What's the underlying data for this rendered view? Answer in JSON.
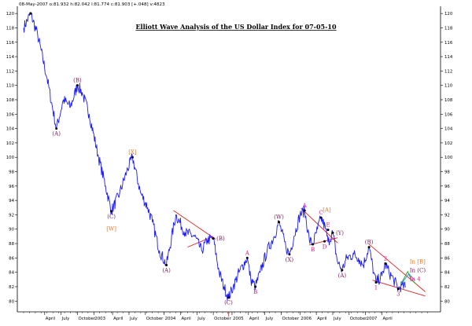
{
  "header": {
    "text": "08-May-2007 o:81.932 h:82.042 l:81.774 c:81.903 [+.048] v:4823"
  },
  "chart_data": {
    "type": "line",
    "title": "Elliott Wave Analysis of the US Dollar Index for 07-05-10",
    "ylim": [
      78.5,
      121
    ],
    "y_ticks": [
      80,
      82,
      84,
      86,
      88,
      90,
      92,
      94,
      96,
      98,
      100,
      102,
      104,
      106,
      108,
      110,
      112,
      114,
      116,
      118,
      120
    ],
    "x_tick_labels": [
      "April",
      "July",
      "October",
      "2003",
      "April",
      "July",
      "October",
      "2004",
      "April",
      "July",
      "October",
      "2005",
      "April",
      "July",
      "October",
      "2006",
      "April",
      "July",
      "October",
      "2007",
      "April"
    ],
    "x_tick_t": [
      0.9,
      1.6,
      2.3,
      3.0,
      3.8,
      4.5,
      5.2,
      6.0,
      6.7,
      7.4,
      8.1,
      8.9,
      9.6,
      10.3,
      11.0,
      11.8,
      12.5,
      13.2,
      13.9,
      14.6,
      15.3
    ],
    "anchors": [
      [
        0,
        118
      ],
      [
        0.3,
        120
      ],
      [
        0.6,
        117
      ],
      [
        1.0,
        111
      ],
      [
        1.4,
        104
      ],
      [
        1.7,
        108
      ],
      [
        2.0,
        107
      ],
      [
        2.3,
        110
      ],
      [
        2.5,
        109
      ],
      [
        2.8,
        106
      ],
      [
        3.2,
        100
      ],
      [
        3.5,
        96
      ],
      [
        3.75,
        92.5
      ],
      [
        4.1,
        95
      ],
      [
        4.4,
        98
      ],
      [
        4.65,
        100
      ],
      [
        5.0,
        95
      ],
      [
        5.3,
        93
      ],
      [
        5.5,
        91
      ],
      [
        5.8,
        87
      ],
      [
        6.1,
        85
      ],
      [
        6.5,
        92
      ],
      [
        6.9,
        89.5
      ],
      [
        7.3,
        89
      ],
      [
        7.6,
        87
      ],
      [
        7.85,
        88.5
      ],
      [
        8.1,
        88.7
      ],
      [
        8.35,
        84
      ],
      [
        8.55,
        82
      ],
      [
        8.75,
        80.5
      ],
      [
        8.95,
        82
      ],
      [
        9.2,
        84
      ],
      [
        9.55,
        86
      ],
      [
        9.7,
        83
      ],
      [
        9.9,
        82
      ],
      [
        10.1,
        84
      ],
      [
        10.4,
        87
      ],
      [
        10.7,
        89
      ],
      [
        10.9,
        91
      ],
      [
        11.2,
        87.5
      ],
      [
        11.35,
        86.5
      ],
      [
        11.55,
        89
      ],
      [
        11.8,
        92
      ],
      [
        12.0,
        92.6
      ],
      [
        12.2,
        88.5
      ],
      [
        12.35,
        87.9
      ],
      [
        12.55,
        90
      ],
      [
        12.7,
        91.6
      ],
      [
        12.9,
        90
      ],
      [
        13.0,
        88.2
      ],
      [
        13.2,
        89.5
      ],
      [
        13.4,
        85.5
      ],
      [
        13.6,
        84.3
      ],
      [
        13.8,
        86
      ],
      [
        14.1,
        86.5
      ],
      [
        14.3,
        86
      ],
      [
        14.5,
        85
      ],
      [
        14.75,
        87.5
      ],
      [
        14.95,
        84
      ],
      [
        15.05,
        82.6
      ],
      [
        15.3,
        83.5
      ],
      [
        15.45,
        85.2
      ],
      [
        15.6,
        84
      ],
      [
        15.8,
        83
      ],
      [
        16.0,
        81.7
      ],
      [
        16.15,
        82.2
      ],
      [
        16.3,
        81.9
      ]
    ],
    "extra_waves": [
      {
        "color": "#22aa22",
        "points": [
          [
            16.1,
            82.3
          ],
          [
            16.4,
            84.1
          ],
          [
            16.55,
            83
          ],
          [
            16.75,
            82.4
          ]
        ]
      },
      {
        "color": "#3388ff",
        "points": [
          [
            16.15,
            82.5
          ],
          [
            16.45,
            83.8
          ],
          [
            16.7,
            82.9
          ]
        ]
      }
    ],
    "trendlines": [
      {
        "color": "#e02020",
        "from": [
          6.4,
          92.6
        ],
        "to": [
          8.2,
          88.6
        ]
      },
      {
        "color": "#e02020",
        "from": [
          7.0,
          87.5
        ],
        "to": [
          8.1,
          89.0
        ]
      },
      {
        "color": "#e02020",
        "from": [
          11.85,
          92.9
        ],
        "to": [
          13.4,
          88.1
        ]
      },
      {
        "color": "#e02020",
        "from": [
          12.2,
          87.8
        ],
        "to": [
          13.4,
          88.8
        ]
      },
      {
        "color": "#e02020",
        "from": [
          14.75,
          87.9
        ],
        "to": [
          17.15,
          81.3
        ]
      },
      {
        "color": "#e02020",
        "from": [
          14.9,
          82.9
        ],
        "to": [
          17.15,
          80.7
        ]
      }
    ],
    "wave_labels": [
      {
        "text": "(A)",
        "t": 1.4,
        "y": 104,
        "pos": "below",
        "color": "#7a1a5a"
      },
      {
        "text": "(B)",
        "t": 2.3,
        "y": 110,
        "pos": "above",
        "color": "#7a1a5a"
      },
      {
        "text": "[X]",
        "t": 4.65,
        "y": 100,
        "pos": "above",
        "color": "#e07a30"
      },
      {
        "text": "(C)",
        "t": 3.75,
        "y": 92.5,
        "pos": "below",
        "color": "#7a1a5a"
      },
      {
        "text": "[W]",
        "t": 3.75,
        "y": 91.0,
        "pos": "below2",
        "color": "#e07a30"
      },
      {
        "text": "(A)",
        "t": 6.1,
        "y": 85,
        "pos": "below",
        "color": "#7a1a5a"
      },
      {
        "text": "(B)",
        "t": 8.1,
        "y": 88.7,
        "pos": "right",
        "color": "#7a1a5a"
      },
      {
        "text": "(C)",
        "t": 8.75,
        "y": 80.5,
        "pos": "below",
        "color": "#7a1a5a"
      },
      {
        "text": "Y",
        "t": 8.75,
        "y": 78.9,
        "pos": "below",
        "color": "#e02020"
      },
      {
        "text": "A",
        "t": 9.55,
        "y": 86,
        "pos": "above",
        "color": "#e01a80"
      },
      {
        "text": "B",
        "t": 9.9,
        "y": 82,
        "pos": "below",
        "color": "#e01a80"
      },
      {
        "text": "(W)",
        "t": 10.9,
        "y": 91,
        "pos": "above",
        "color": "#7a1a5a"
      },
      {
        "text": "(X)",
        "t": 11.35,
        "y": 86.5,
        "pos": "below",
        "color": "#7a1a5a"
      },
      {
        "text": "A",
        "t": 12.0,
        "y": 92.6,
        "pos": "above",
        "color": "#e01a80"
      },
      {
        "text": "B",
        "t": 12.35,
        "y": 87.9,
        "pos": "below",
        "color": "#e01a80"
      },
      {
        "text": "C",
        "t": 12.7,
        "y": 91.6,
        "pos": "above",
        "color": "#e01a80"
      },
      {
        "text": "[A]",
        "t": 12.95,
        "y": 92.0,
        "pos": "above",
        "color": "#e07a30"
      },
      {
        "text": "D",
        "t": 12.85,
        "y": 88.3,
        "pos": "below",
        "color": "#e01a80"
      },
      {
        "text": "E",
        "t": 13.0,
        "y": 89.9,
        "pos": "above",
        "color": "#e01a80"
      },
      {
        "text": "(Y)",
        "t": 13.2,
        "y": 89.5,
        "pos": "right",
        "color": "#7a1a5a"
      },
      {
        "text": "(A)",
        "t": 13.6,
        "y": 84.3,
        "pos": "below",
        "color": "#7a1a5a"
      },
      {
        "text": "(B)",
        "t": 14.75,
        "y": 87.5,
        "pos": "above",
        "color": "#7a1a5a"
      },
      {
        "text": "1",
        "t": 15.05,
        "y": 82.6,
        "pos": "below",
        "color": "#e01a80"
      },
      {
        "text": "2",
        "t": 15.45,
        "y": 85.2,
        "pos": "above",
        "color": "#e01a80"
      },
      {
        "text": "3",
        "t": 16.0,
        "y": 81.7,
        "pos": "below",
        "color": "#e01a80"
      },
      {
        "text": "In [B]",
        "t": 16.35,
        "y": 85.5,
        "pos": "right",
        "color": "#e07a30"
      },
      {
        "text": "In (C)",
        "t": 16.35,
        "y": 84.3,
        "pos": "right",
        "color": "#7a1a5a"
      },
      {
        "text": "In 4",
        "t": 16.35,
        "y": 83.1,
        "pos": "right",
        "color": "#e01a80"
      }
    ],
    "colors": {
      "price": "#1a1aff",
      "pivot": "#000000",
      "axis": "#000000"
    }
  }
}
